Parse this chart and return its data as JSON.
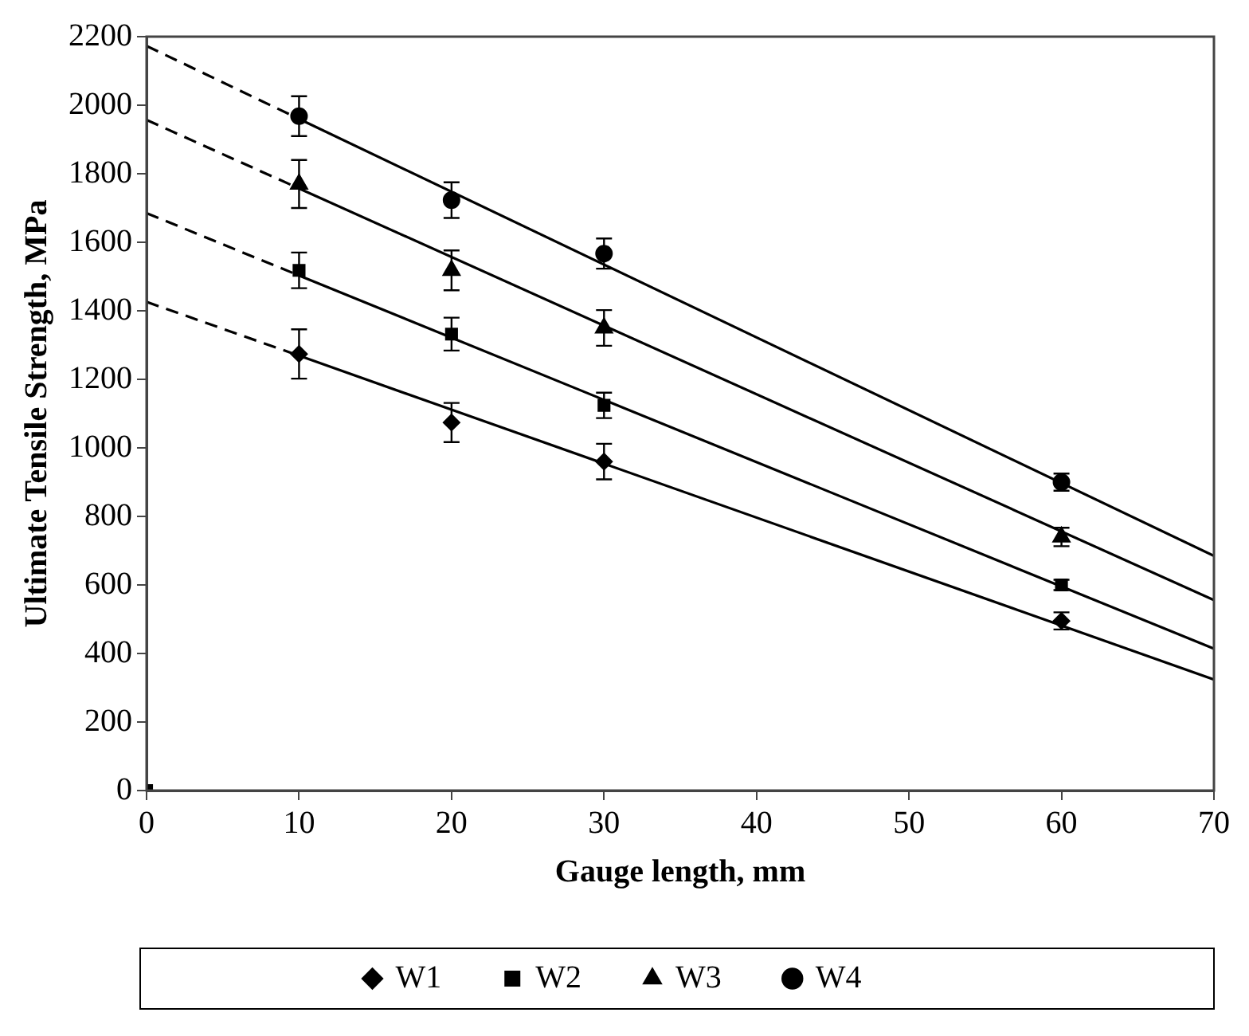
{
  "chart_data": {
    "type": "scatter",
    "xlabel": "Gauge length, mm",
    "ylabel": "Ultimate Tensile Strength, MPa",
    "xlim": [
      0,
      70
    ],
    "xticks": [
      0,
      10,
      20,
      30,
      40,
      50,
      60,
      70
    ],
    "ylim": [
      0,
      2200
    ],
    "yticks": [
      0,
      200,
      400,
      600,
      800,
      1000,
      1200,
      1400,
      1600,
      1800,
      2000,
      2200
    ],
    "grid": false,
    "legend": "bottom",
    "series": [
      {
        "name": "W1",
        "type": "scatter",
        "marker": "diamond",
        "color": "#000000",
        "x": [
          10,
          20,
          30,
          60
        ],
        "values": [
          1274,
          1074,
          960,
          495
        ],
        "errors": [
          72,
          57,
          52,
          25
        ]
      },
      {
        "name": "W2",
        "type": "scatter",
        "marker": "square",
        "color": "#000000",
        "x": [
          0,
          10,
          20,
          30,
          60
        ],
        "values": [
          0,
          1518,
          1332,
          1124,
          600
        ],
        "errors": [
          null,
          52,
          48,
          37,
          15
        ]
      },
      {
        "name": "W3",
        "type": "scatter",
        "marker": "triangle",
        "color": "#000000",
        "x": [
          10,
          20,
          30,
          60
        ],
        "values": [
          1770,
          1518,
          1350,
          740
        ],
        "errors": [
          70,
          58,
          52,
          27
        ]
      },
      {
        "name": "W4",
        "type": "scatter",
        "marker": "circle",
        "color": "#000000",
        "x": [
          10,
          20,
          30,
          60
        ],
        "values": [
          1968,
          1723,
          1567,
          900
        ],
        "errors": [
          58,
          52,
          44,
          25
        ]
      },
      {
        "type": "line",
        "line_style": "solid",
        "color": "#000000",
        "x": [
          10,
          70
        ],
        "values": [
          1269,
          324
        ]
      },
      {
        "type": "line",
        "line_style": "dashed",
        "color": "#000000",
        "x": [
          0,
          10
        ],
        "values": [
          1426,
          1269
        ]
      },
      {
        "type": "line",
        "line_style": "solid",
        "color": "#000000",
        "x": [
          10,
          70
        ],
        "values": [
          1503,
          414
        ]
      },
      {
        "type": "line",
        "line_style": "dashed",
        "color": "#000000",
        "x": [
          0,
          10
        ],
        "values": [
          1685,
          1503
        ]
      },
      {
        "type": "line",
        "line_style": "solid",
        "color": "#000000",
        "x": [
          10,
          70
        ],
        "values": [
          1757,
          556
        ]
      },
      {
        "type": "line",
        "line_style": "dashed",
        "color": "#000000",
        "x": [
          0,
          10
        ],
        "values": [
          1957,
          1757
        ]
      },
      {
        "type": "line",
        "line_style": "solid",
        "color": "#000000",
        "x": [
          10,
          70
        ],
        "values": [
          1960,
          685
        ]
      },
      {
        "type": "line",
        "line_style": "dashed",
        "color": "#000000",
        "x": [
          0,
          10
        ],
        "values": [
          2173,
          1960
        ]
      }
    ]
  }
}
